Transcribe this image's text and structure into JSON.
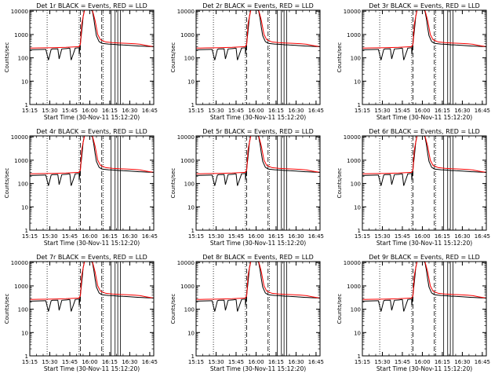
{
  "colors": {
    "events": "#000000",
    "lld": "#ff0000",
    "background": "#ffffff"
  },
  "panels": [
    {
      "title": "Det 1r BLACK = Events, RED = LLD"
    },
    {
      "title": "Det 2r BLACK = Events, RED = LLD"
    },
    {
      "title": "Det 3r BLACK = Events, RED = LLD"
    },
    {
      "title": "Det 4r BLACK = Events, RED = LLD"
    },
    {
      "title": "Det 5r BLACK = Events, RED = LLD"
    },
    {
      "title": "Det 6r BLACK = Events, RED = LLD"
    },
    {
      "title": "Det 7r BLACK = Events, RED = LLD"
    },
    {
      "title": "Det 8r BLACK = Events, RED = LLD"
    },
    {
      "title": "Det 9r BLACK = Events, RED = LLD"
    }
  ],
  "chart_data": {
    "type": "line",
    "layout": "3x3 grid of identical line plots",
    "xlabel": "Start Time (30-Nov-11 15:12:20)",
    "ylabel": "Counts/sec",
    "x_ticks": [
      "15:15",
      "15:30",
      "15:45",
      "16:00",
      "16:15",
      "16:30",
      "16:45"
    ],
    "x_range_min": [
      3,
      96
    ],
    "y_ticks": [
      "1",
      "10",
      "100",
      "1000",
      "10000"
    ],
    "y_scale": "log",
    "ylim": [
      1,
      11000
    ],
    "grid": false,
    "legend": "none; series described in panel titles",
    "series": [
      {
        "name": "Events",
        "color": "black",
        "x": [
          3,
          14,
          15,
          17,
          19,
          20,
          21,
          24,
          25,
          27,
          31,
          32,
          33,
          34,
          37,
          37,
          40,
          40,
          42,
          43,
          44,
          47,
          49,
          50,
          51,
          52,
          53,
          55,
          57,
          60,
          62,
          65,
          68,
          70,
          72,
          73,
          78,
          82,
          85,
          86,
          90,
          96
        ],
        "y": [
          220,
          230,
          230,
          80,
          230,
          240,
          240,
          245,
          90,
          240,
          250,
          260,
          255,
          80,
          250,
          260,
          270,
          140,
          1500,
          6000,
          11000,
          11000,
          11000,
          10000,
          5000,
          2000,
          900,
          500,
          420,
          400,
          390,
          380,
          370,
          360,
          360,
          355,
          340,
          330,
          320,
          320,
          310,
          300
        ]
      },
      {
        "name": "LLD",
        "color": "red",
        "x": [
          3,
          10,
          20,
          30,
          40,
          41,
          42,
          44,
          47,
          50,
          52,
          54,
          56,
          60,
          65,
          70,
          75,
          78,
          82,
          86,
          90,
          93,
          96
        ],
        "y": [
          260,
          265,
          270,
          280,
          300,
          400,
          3000,
          11000,
          11000,
          11000,
          4000,
          1000,
          600,
          480,
          450,
          430,
          420,
          410,
          400,
          380,
          340,
          320,
          300
        ]
      }
    ],
    "markers": {
      "dotted_x": [
        16,
        40,
        58
      ],
      "dashed_x": [
        41,
        57
      ],
      "solid_x": [
        64,
        67,
        69,
        71
      ]
    },
    "annotations": []
  }
}
